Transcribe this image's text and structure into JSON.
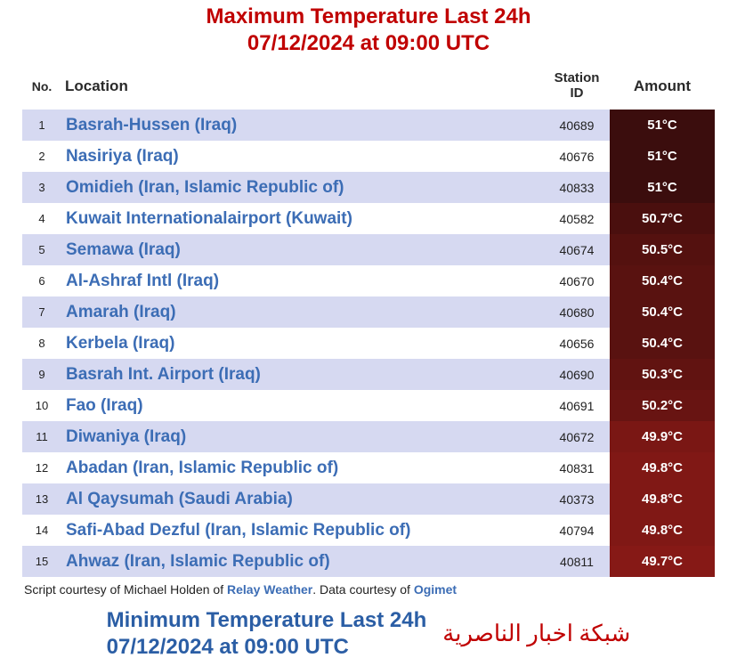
{
  "header": {
    "title_line1": "Maximum Temperature Last 24h",
    "title_line2": "07/12/2024 at 09:00 UTC"
  },
  "columns": {
    "no": "No.",
    "location": "Location",
    "station_id": "Station ID",
    "amount": "Amount"
  },
  "colors": {
    "row_even_bg": [
      "#d6d9f1",
      "#d6d9f1",
      "#d6d9f1"
    ],
    "row_odd_bg": [
      "#ffffff",
      "#ffffff",
      "#ffffff"
    ],
    "amt_dark": "#3b0d0d",
    "amt_mid": "#6b1512",
    "amt_light": "#8b1a17",
    "amt_text": "#ffffff",
    "location_text": "#3c6db5",
    "title_red": "#c00000",
    "title_blue": "#2b5ea5"
  },
  "rows": [
    {
      "no": "1",
      "location": "Basrah-Hussen (Iraq)",
      "station": "40689",
      "amount": "51°C",
      "amt_bg": "#3b0d0d"
    },
    {
      "no": "2",
      "location": "Nasiriya (Iraq)",
      "station": "40676",
      "amount": "51°C",
      "amt_bg": "#3b0d0d"
    },
    {
      "no": "3",
      "location": "Omidieh (Iran, Islamic Republic of)",
      "station": "40833",
      "amount": "51°C",
      "amt_bg": "#3b0d0d"
    },
    {
      "no": "4",
      "location": "Kuwait Internationalairport (Kuwait)",
      "station": "40582",
      "amount": "50.7°C",
      "amt_bg": "#4a0f0e"
    },
    {
      "no": "5",
      "location": "Semawa (Iraq)",
      "station": "40674",
      "amount": "50.5°C",
      "amt_bg": "#54110f"
    },
    {
      "no": "6",
      "location": "Al-Ashraf Intl (Iraq)",
      "station": "40670",
      "amount": "50.4°C",
      "amt_bg": "#591210"
    },
    {
      "no": "7",
      "location": "Amarah (Iraq)",
      "station": "40680",
      "amount": "50.4°C",
      "amt_bg": "#591210"
    },
    {
      "no": "8",
      "location": "Kerbela (Iraq)",
      "station": "40656",
      "amount": "50.4°C",
      "amt_bg": "#591210"
    },
    {
      "no": "9",
      "location": "Basrah Int. Airport (Iraq)",
      "station": "40690",
      "amount": "50.3°C",
      "amt_bg": "#611311"
    },
    {
      "no": "10",
      "location": "Fao (Iraq)",
      "station": "40691",
      "amount": "50.2°C",
      "amt_bg": "#681412"
    },
    {
      "no": "11",
      "location": "Diwaniya (Iraq)",
      "station": "40672",
      "amount": "49.9°C",
      "amt_bg": "#7a1714"
    },
    {
      "no": "12",
      "location": "Abadan (Iran, Islamic Republic of)",
      "station": "40831",
      "amount": "49.8°C",
      "amt_bg": "#801815"
    },
    {
      "no": "13",
      "location": "Al Qaysumah (Saudi Arabia)",
      "station": "40373",
      "amount": "49.8°C",
      "amt_bg": "#801815"
    },
    {
      "no": "14",
      "location": "Safi-Abad Dezful (Iran, Islamic Republic of)",
      "station": "40794",
      "amount": "49.8°C",
      "amt_bg": "#801815"
    },
    {
      "no": "15",
      "location": "Ahwaz (Iran, Islamic Republic of)",
      "station": "40811",
      "amount": "49.7°C",
      "amt_bg": "#861916"
    }
  ],
  "credits": {
    "prefix": "Script courtesy of  Michael Holden of ",
    "link1": "Relay Weather",
    "mid": ". Data courtesy of ",
    "link2": "Ogimet"
  },
  "footer": {
    "title_line1": "Minimum Temperature Last 24h",
    "title_line2": "07/12/2024 at 09:00 UTC",
    "arabic": "شبكة اخبار الناصرية"
  }
}
